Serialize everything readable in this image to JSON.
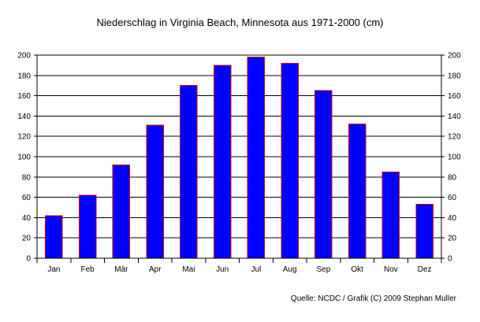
{
  "chart_data": {
    "type": "bar",
    "title": "Niederschlag in Virginia Beach, Minnesota aus 1971-2000 (cm)",
    "categories": [
      "Jan",
      "Feb",
      "Mär",
      "Apr",
      "Mai",
      "Jun",
      "Jul",
      "Aug",
      "Sep",
      "Okt",
      "Nov",
      "Dez"
    ],
    "values": [
      42,
      62,
      92,
      131,
      170,
      190,
      198,
      192,
      165,
      132,
      85,
      53
    ],
    "xlabel": "",
    "ylabel": "",
    "ylim": [
      0,
      200
    ],
    "yticks": [
      0,
      20,
      40,
      60,
      80,
      100,
      120,
      140,
      160,
      180,
      200
    ],
    "grid": true,
    "secondary_y_axis": true,
    "bar_color": "#0000ff",
    "bar_edge_color": "#cc0000",
    "source": "Quelle: NCDC / Grafik (C) 2009 Stephan Muller"
  }
}
